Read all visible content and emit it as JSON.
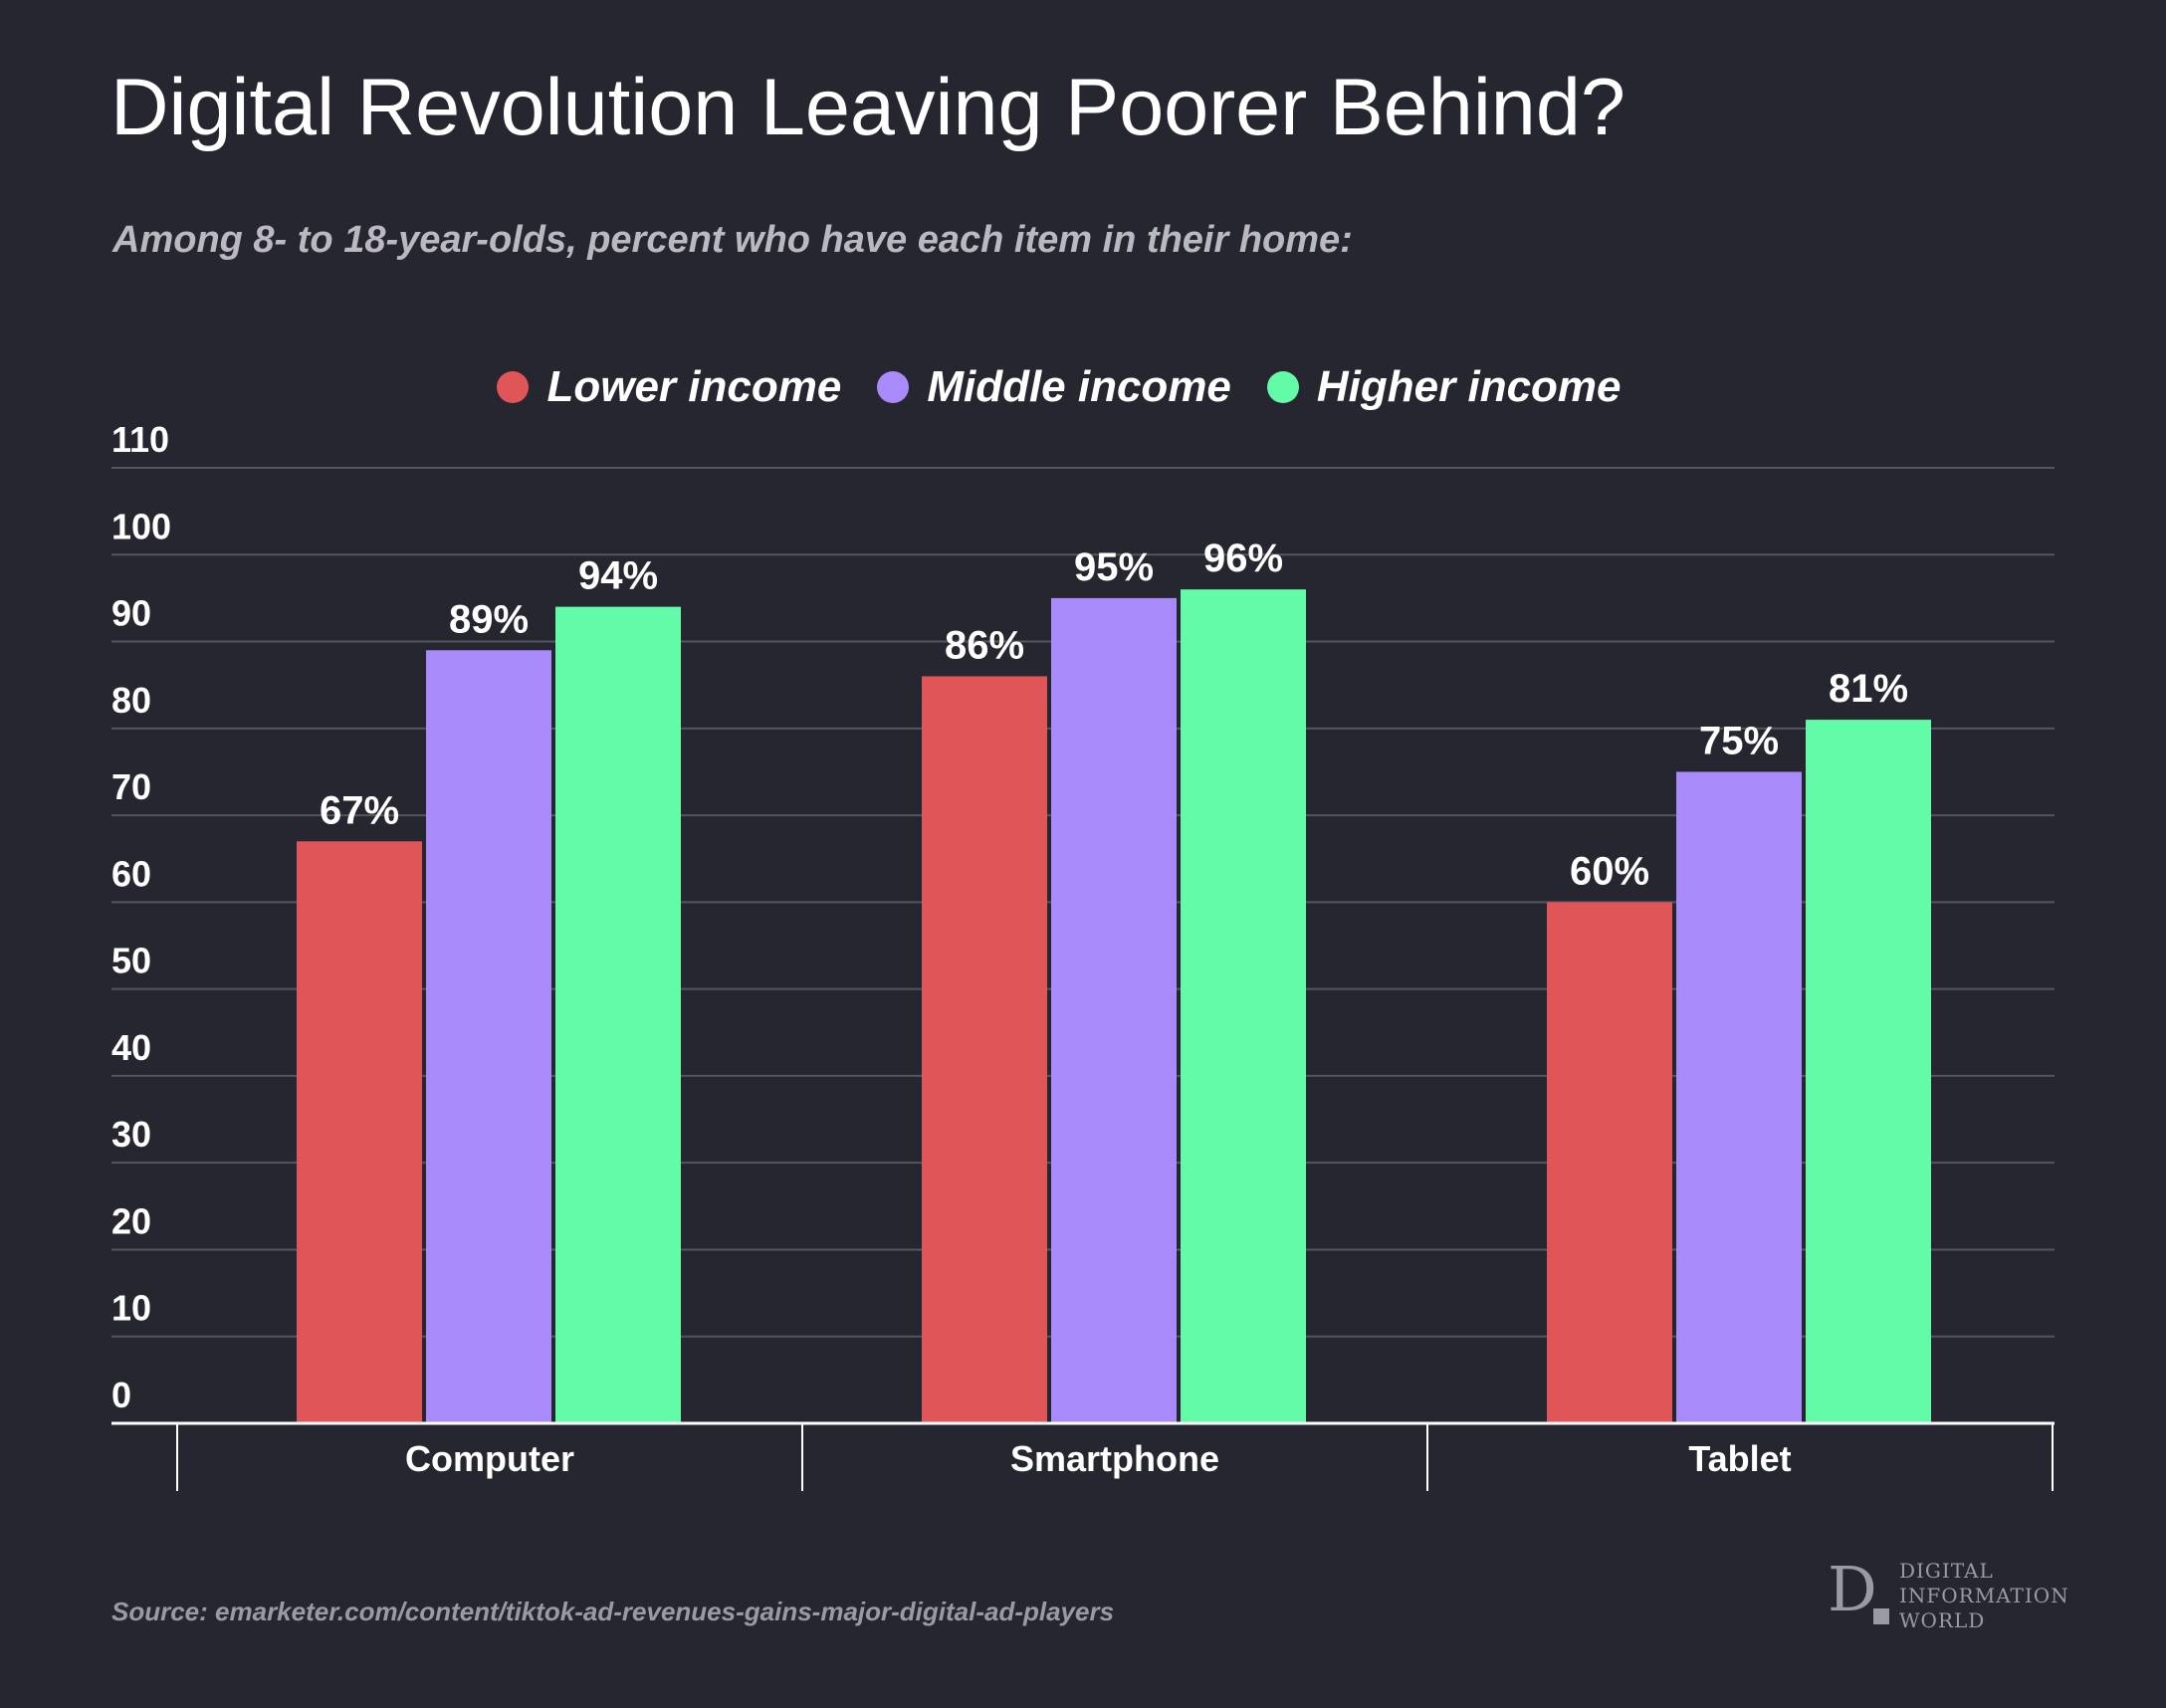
{
  "title": "Digital Revolution Leaving Poorer Behind?",
  "subtitle": "Among 8- to 18-year-olds, percent who have each item in their home:",
  "legend": [
    {
      "label": "Lower income",
      "color": "#e05558"
    },
    {
      "label": "Middle income",
      "color": "#a98afb"
    },
    {
      "label": "Higher income",
      "color": "#64fba8"
    }
  ],
  "source": "Source: emarketer.com/content/tiktok-ad-revenues-gains-major-digital-ad-players",
  "logo": {
    "lines": [
      "DIGITAL",
      "INFORMATION",
      "WORLD"
    ],
    "mark": "D"
  },
  "colors": {
    "background": "#262630",
    "grid": "#55555f",
    "axis": "#ffffff",
    "text": "#ffffff"
  },
  "chart_data": {
    "type": "bar",
    "title": "Digital Revolution Leaving Poorer Behind?",
    "subtitle": "Among 8- to 18-year-olds, percent who have each item in their home:",
    "categories": [
      "Computer",
      "Smartphone",
      "Tablet"
    ],
    "series": [
      {
        "name": "Lower income",
        "color": "#e05558",
        "values": [
          67,
          86,
          60
        ]
      },
      {
        "name": "Middle income",
        "color": "#a98afb",
        "values": [
          89,
          95,
          75
        ]
      },
      {
        "name": "Higher income",
        "color": "#64fba8",
        "values": [
          94,
          96,
          81
        ]
      }
    ],
    "data_label_suffix": "%",
    "yticks": [
      0,
      10,
      20,
      30,
      40,
      50,
      60,
      70,
      80,
      90,
      100,
      110
    ],
    "ylim": [
      0,
      110
    ],
    "xlabel": "",
    "ylabel": "",
    "grid": true,
    "legend_position": "top-center"
  }
}
